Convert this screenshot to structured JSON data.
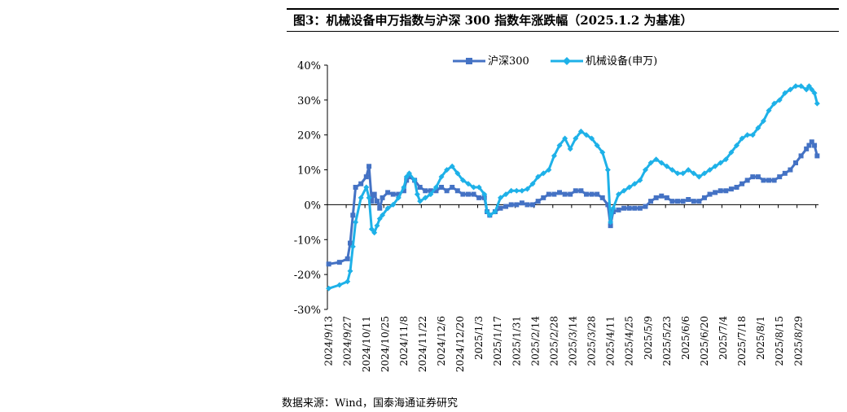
{
  "figure_title": "图3：机械设备申万指数与沪深 300 指数年涨跌幅（2025.1.2 为基准）",
  "source": "数据来源：Wind，国泰海通证券研究",
  "colors": {
    "hs300": "#4472C4",
    "machinery": "#1EB1E8",
    "axis": "#000000"
  },
  "chart_data": {
    "type": "line",
    "title": "机械设备申万指数与沪深 300 指数年涨跌幅（2025.1.2 为基准）",
    "xlabel": "",
    "ylabel": "",
    "ylim": [
      -30,
      40
    ],
    "yticks": [
      -30,
      -20,
      -10,
      0,
      10,
      20,
      30,
      40
    ],
    "ytick_labels": [
      "-30%",
      "-20%",
      "-10%",
      "0%",
      "10%",
      "20%",
      "30%",
      "40%"
    ],
    "x_tick_labels": [
      "2024/9/13",
      "2024/9/27",
      "2024/10/11",
      "2024/10/25",
      "2024/11/8",
      "2024/11/22",
      "2024/12/6",
      "2024/12/20",
      "2025/1/3",
      "2025/1/17",
      "2025/1/31",
      "2025/2/14",
      "2025/2/28",
      "2025/3/14",
      "2025/3/28",
      "2025/4/11",
      "2025/4/25",
      "2025/5/9",
      "2025/5/23",
      "2025/6/6",
      "2025/6/20",
      "2025/7/4",
      "2025/7/18",
      "2025/8/1",
      "2025/8/15",
      "2025/8/29"
    ],
    "legend_position": "top-center",
    "series": [
      {
        "name": "沪深300",
        "marker": "square",
        "points": [
          [
            0,
            -17
          ],
          [
            4,
            -16.5
          ],
          [
            7,
            -15.5
          ],
          [
            8,
            -11
          ],
          [
            9,
            -3
          ],
          [
            10,
            5
          ],
          [
            12,
            6
          ],
          [
            14,
            8
          ],
          [
            15,
            11
          ],
          [
            16,
            1
          ],
          [
            17,
            3
          ],
          [
            18,
            1
          ],
          [
            19,
            -1
          ],
          [
            20,
            2
          ],
          [
            22,
            3.5
          ],
          [
            24,
            3
          ],
          [
            26,
            3
          ],
          [
            28,
            4
          ],
          [
            29,
            7
          ],
          [
            30,
            8
          ],
          [
            32,
            7
          ],
          [
            34,
            5
          ],
          [
            36,
            4
          ],
          [
            38,
            4
          ],
          [
            40,
            4
          ],
          [
            42,
            5
          ],
          [
            44,
            4
          ],
          [
            46,
            5
          ],
          [
            48,
            4
          ],
          [
            50,
            3
          ],
          [
            52,
            3
          ],
          [
            54,
            3
          ],
          [
            56,
            2
          ],
          [
            58,
            2
          ],
          [
            59,
            -2
          ],
          [
            60,
            -3
          ],
          [
            62,
            -2
          ],
          [
            64,
            -1
          ],
          [
            66,
            -0.5
          ],
          [
            68,
            0
          ],
          [
            70,
            0
          ],
          [
            72,
            0.5
          ],
          [
            74,
            0
          ],
          [
            76,
            0
          ],
          [
            78,
            1
          ],
          [
            80,
            2
          ],
          [
            82,
            3
          ],
          [
            84,
            3
          ],
          [
            86,
            3.5
          ],
          [
            88,
            3
          ],
          [
            90,
            3
          ],
          [
            92,
            4
          ],
          [
            94,
            4
          ],
          [
            96,
            3
          ],
          [
            98,
            3
          ],
          [
            100,
            3
          ],
          [
            102,
            2
          ],
          [
            104,
            0
          ],
          [
            105,
            -6
          ],
          [
            106,
            -2
          ],
          [
            108,
            -1.5
          ],
          [
            110,
            -1
          ],
          [
            112,
            -1
          ],
          [
            114,
            -1
          ],
          [
            116,
            -1
          ],
          [
            118,
            -0.5
          ],
          [
            120,
            1
          ],
          [
            122,
            2
          ],
          [
            124,
            2.5
          ],
          [
            126,
            2
          ],
          [
            128,
            1
          ],
          [
            130,
            1
          ],
          [
            132,
            1
          ],
          [
            134,
            1.5
          ],
          [
            136,
            1
          ],
          [
            138,
            1
          ],
          [
            140,
            2
          ],
          [
            142,
            3
          ],
          [
            144,
            3.5
          ],
          [
            146,
            4
          ],
          [
            148,
            4
          ],
          [
            150,
            4.5
          ],
          [
            152,
            5
          ],
          [
            154,
            6
          ],
          [
            156,
            7
          ],
          [
            158,
            8
          ],
          [
            160,
            8
          ],
          [
            162,
            7
          ],
          [
            164,
            7
          ],
          [
            166,
            7
          ],
          [
            168,
            8
          ],
          [
            170,
            9
          ],
          [
            172,
            10
          ],
          [
            174,
            12
          ],
          [
            176,
            14
          ],
          [
            178,
            16
          ],
          [
            179,
            17
          ],
          [
            180,
            18
          ],
          [
            181,
            17
          ],
          [
            182,
            14
          ]
        ]
      },
      {
        "name": "机械设备(申万)",
        "marker": "diamond",
        "points": [
          [
            0,
            -24
          ],
          [
            4,
            -23
          ],
          [
            7,
            -22
          ],
          [
            8,
            -19
          ],
          [
            9,
            -12
          ],
          [
            10,
            -5
          ],
          [
            12,
            2
          ],
          [
            14,
            5
          ],
          [
            15,
            2
          ],
          [
            16,
            -7
          ],
          [
            17,
            -8
          ],
          [
            18,
            -6
          ],
          [
            19,
            -4
          ],
          [
            20,
            -3
          ],
          [
            22,
            -1
          ],
          [
            24,
            0
          ],
          [
            26,
            2
          ],
          [
            28,
            5
          ],
          [
            29,
            8
          ],
          [
            30,
            9
          ],
          [
            32,
            7
          ],
          [
            33,
            3
          ],
          [
            34,
            1
          ],
          [
            36,
            2
          ],
          [
            38,
            3
          ],
          [
            40,
            5
          ],
          [
            42,
            8
          ],
          [
            44,
            10
          ],
          [
            46,
            11
          ],
          [
            48,
            9
          ],
          [
            50,
            7
          ],
          [
            52,
            6
          ],
          [
            54,
            5
          ],
          [
            56,
            5
          ],
          [
            58,
            3
          ],
          [
            59,
            -2
          ],
          [
            60,
            -3
          ],
          [
            62,
            -2
          ],
          [
            64,
            2
          ],
          [
            66,
            3
          ],
          [
            68,
            4
          ],
          [
            70,
            4
          ],
          [
            72,
            4
          ],
          [
            74,
            4.5
          ],
          [
            76,
            6
          ],
          [
            78,
            8
          ],
          [
            80,
            9
          ],
          [
            82,
            10
          ],
          [
            84,
            14
          ],
          [
            86,
            17
          ],
          [
            88,
            19
          ],
          [
            90,
            16
          ],
          [
            92,
            19
          ],
          [
            94,
            21
          ],
          [
            96,
            20
          ],
          [
            98,
            19
          ],
          [
            100,
            17
          ],
          [
            102,
            15
          ],
          [
            104,
            10
          ],
          [
            105,
            -5
          ],
          [
            106,
            -1
          ],
          [
            108,
            3
          ],
          [
            110,
            4
          ],
          [
            112,
            5
          ],
          [
            114,
            6
          ],
          [
            116,
            7
          ],
          [
            118,
            10
          ],
          [
            120,
            12
          ],
          [
            122,
            13
          ],
          [
            124,
            12
          ],
          [
            126,
            11
          ],
          [
            128,
            10
          ],
          [
            130,
            9
          ],
          [
            132,
            9
          ],
          [
            134,
            10
          ],
          [
            136,
            9
          ],
          [
            138,
            8
          ],
          [
            140,
            9
          ],
          [
            142,
            10
          ],
          [
            144,
            11
          ],
          [
            146,
            12
          ],
          [
            148,
            13
          ],
          [
            150,
            15
          ],
          [
            152,
            17
          ],
          [
            154,
            19
          ],
          [
            156,
            20
          ],
          [
            158,
            20
          ],
          [
            160,
            22
          ],
          [
            162,
            24
          ],
          [
            164,
            27
          ],
          [
            166,
            29
          ],
          [
            168,
            30
          ],
          [
            170,
            32
          ],
          [
            172,
            33
          ],
          [
            174,
            34
          ],
          [
            176,
            34
          ],
          [
            178,
            33
          ],
          [
            179,
            34
          ],
          [
            180,
            33
          ],
          [
            181,
            32
          ],
          [
            182,
            29
          ]
        ]
      }
    ]
  }
}
